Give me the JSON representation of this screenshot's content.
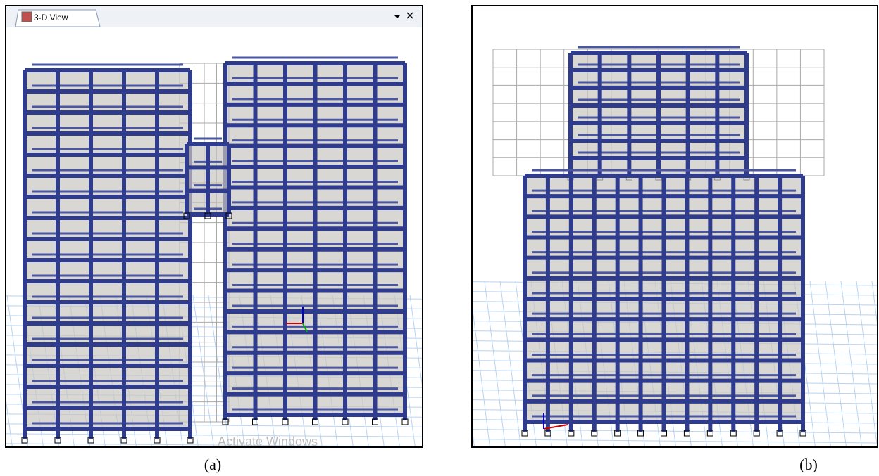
{
  "panels": [
    {
      "tab_title": "3-D View",
      "watermark": "Activate Windows",
      "caption": "(a)"
    },
    {
      "caption": "(b)"
    }
  ]
}
